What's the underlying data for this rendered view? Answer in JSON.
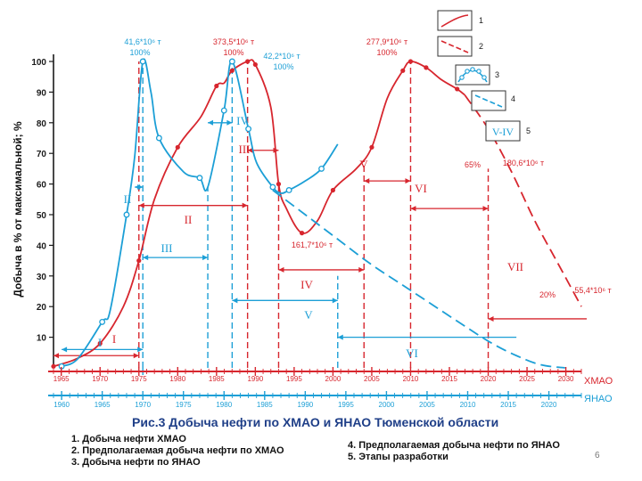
{
  "chart_data": {
    "type": "line",
    "ylabel": "Добыча в % от максимальной; %",
    "ylim": [
      0,
      110
    ],
    "yticks": [
      10,
      20,
      30,
      40,
      50,
      60,
      70,
      80,
      90,
      100
    ],
    "axis_hmao": {
      "label": "ХМАО",
      "range": [
        1964,
        2032
      ],
      "ticks": [
        "1965",
        "1970",
        "1975",
        "1980",
        "1985",
        "1990",
        "1995",
        "2000",
        "2005",
        "2010",
        "2015",
        "2020",
        "2025",
        "2030"
      ]
    },
    "axis_yanao": {
      "label": "ЯНАО",
      "range": [
        1959,
        2024
      ],
      "ticks": [
        "1960",
        "1965",
        "1970",
        "1975",
        "1980",
        "1985",
        "1990",
        "1995",
        "2000",
        "2005",
        "2010",
        "2015",
        "2020"
      ]
    },
    "series": [
      {
        "name": "Добыча нефти ХМАО",
        "axis": "hmao",
        "color": "#d7262e",
        "style": "solid",
        "x": [
          1964,
          1967,
          1970,
          1973,
          1975,
          1977,
          1980,
          1983,
          1985,
          1986,
          1987,
          1989,
          1990,
          1992,
          1993,
          1994,
          1996,
          1998,
          2000,
          2003,
          2005,
          2007,
          2009,
          2010,
          2012,
          2014,
          2016,
          2017
        ],
        "y": [
          0.5,
          3,
          8,
          20,
          35,
          55,
          72,
          82,
          92,
          93,
          97,
          100,
          99,
          85,
          60,
          52,
          44,
          48,
          58,
          65,
          72,
          88,
          97,
          100,
          98,
          94,
          91,
          89
        ]
      },
      {
        "name": "Предполагаемая добыча нефти по ХМАО",
        "axis": "hmao",
        "color": "#d7262e",
        "style": "dashed",
        "x": [
          2017,
          2020,
          2023,
          2026,
          2029,
          2032
        ],
        "y": [
          89,
          78,
          64,
          48,
          34,
          20
        ]
      },
      {
        "name": "Добыча нефти по ЯНАО",
        "axis": "yanao",
        "color": "#1c9fd6",
        "style": "solid",
        "x": [
          1960,
          1962,
          1965,
          1966,
          1968,
          1969,
          1970,
          1971,
          1972,
          1975,
          1977,
          1978,
          1980,
          1981,
          1983,
          1984,
          1986,
          1987,
          1988,
          1990,
          1992,
          1994
        ],
        "y": [
          0.5,
          3,
          15,
          19,
          50,
          69,
          100,
          90,
          75,
          64,
          62,
          59,
          84,
          100,
          78,
          67,
          59,
          57,
          58,
          61,
          65,
          73
        ]
      },
      {
        "name": "Предполагаемая добыча нефти по ЯНАО",
        "axis": "yanao",
        "color": "#1c9fd6",
        "style": "dashed",
        "x": [
          1986,
          1990,
          1994,
          1998,
          2002,
          2006,
          2010,
          2013,
          2016,
          2019,
          2022
        ],
        "y": [
          58,
          50,
          42,
          34,
          27,
          20,
          13,
          8,
          4,
          1,
          0
        ]
      }
    ],
    "annotations": [
      {
        "text": "41,6*10⁶ т",
        "color": "#1c9fd6"
      },
      {
        "text": "100%",
        "color": "#1c9fd6"
      },
      {
        "text": "373,5*10⁶ т",
        "color": "#d7262e"
      },
      {
        "text": "100%",
        "color": "#d7262e"
      },
      {
        "text": "42,2*10⁶ т",
        "color": "#1c9fd6"
      },
      {
        "text": "100%",
        "color": "#1c9fd6"
      },
      {
        "text": "277,9*10⁶ т",
        "color": "#d7262e"
      },
      {
        "text": "100%",
        "color": "#d7262e"
      },
      {
        "text": "65%",
        "color": "#d7262e"
      },
      {
        "text": "180,6*10⁶ т",
        "color": "#d7262e"
      },
      {
        "text": "161,7*10⁶ т",
        "color": "#d7262e"
      },
      {
        "text": "20%",
        "color": "#d7262e"
      },
      {
        "text": "55,4*10⁶ т",
        "color": "#d7262e"
      }
    ],
    "stage_labels": [
      {
        "text": "I",
        "color": "#1c9fd6"
      },
      {
        "text": "I",
        "color": "#d7262e"
      },
      {
        "text": "II",
        "color": "#1c9fd6"
      },
      {
        "text": "II",
        "color": "#d7262e"
      },
      {
        "text": "III",
        "color": "#1c9fd6"
      },
      {
        "text": "III",
        "color": "#d7262e"
      },
      {
        "text": "IV",
        "color": "#1c9fd6"
      },
      {
        "text": "IV",
        "color": "#d7262e"
      },
      {
        "text": "V",
        "color": "#1c9fd6"
      },
      {
        "text": "V",
        "color": "#d7262e"
      },
      {
        "text": "VI",
        "color": "#1c9fd6"
      },
      {
        "text": "VI",
        "color": "#d7262e"
      },
      {
        "text": "VII",
        "color": "#d7262e"
      }
    ],
    "legend_numbers": [
      "1",
      "2",
      "3",
      "4",
      "5"
    ],
    "legend_stage_sample": "V-IV",
    "legend_placement": "top-right"
  },
  "caption": "Рис.3   Добыча нефти по ХМАО и ЯНАО Тюменской области",
  "notes_left": [
    "1. Добыча нефти ХМАО",
    "2. Предполагаемая добыча нефти по ХМАО",
    "3. Добыча нефти по ЯНАО"
  ],
  "notes_right": [
    "4. Предполагаемая добыча нефти по ЯНАО",
    "5. Этапы разработки"
  ],
  "page_number": "6",
  "colors": {
    "red": "#d7262e",
    "blue": "#1c9fd6",
    "axis": "#1a1a1a"
  }
}
